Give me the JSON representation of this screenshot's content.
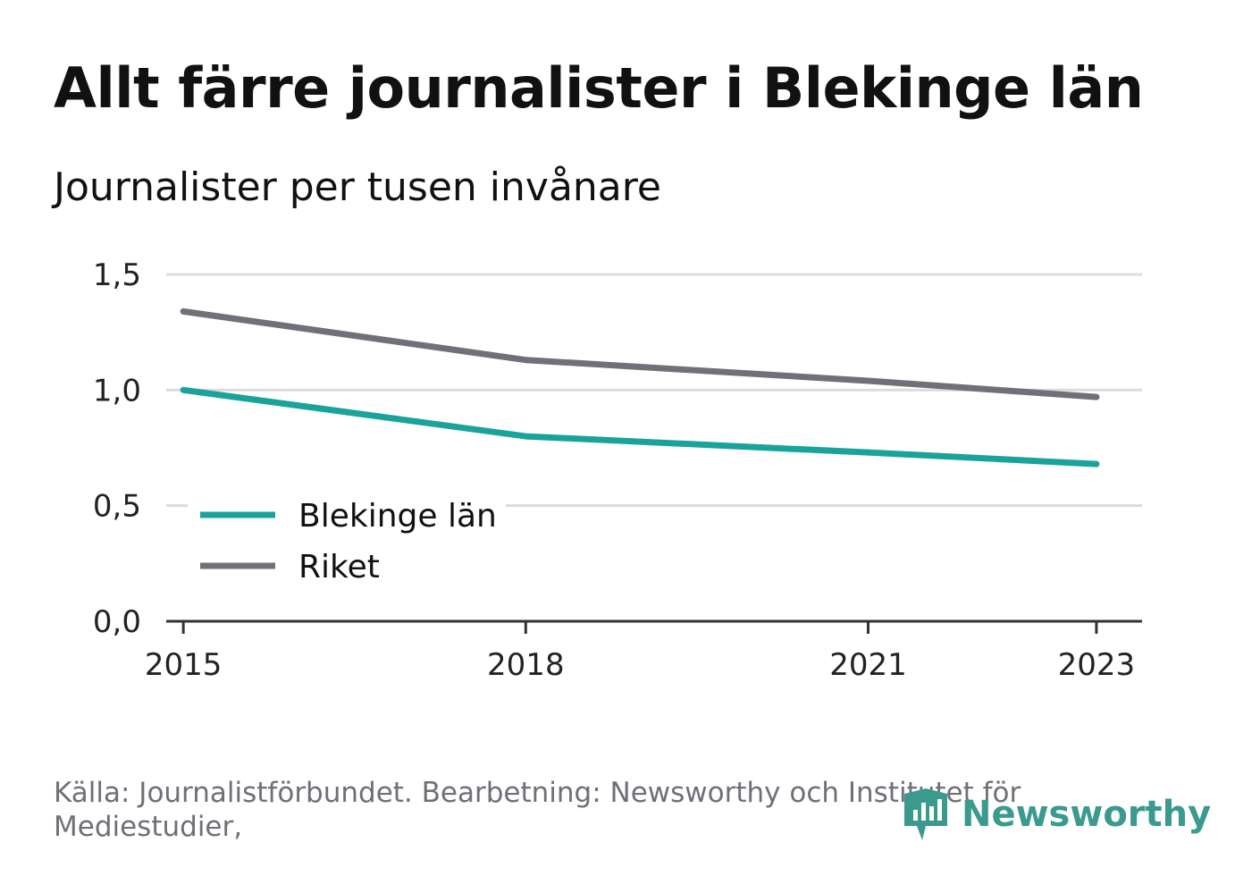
{
  "title": "Allt färre journalister i Blekinge län",
  "subtitle": "Journalister per tusen invånare",
  "source": "Källa: Journalistförbundet. Bearbetning: Newsworthy och Institutet för Mediestudier,",
  "logo": {
    "text": "Newsworthy",
    "icon": "newsworthy-logo-icon",
    "color": "#3a9a8e"
  },
  "chart_data": {
    "type": "line",
    "x": [
      2015,
      2018,
      2021,
      2023
    ],
    "x_ticks": [
      "2015",
      "2018",
      "2021",
      "2023"
    ],
    "y_ticks": [
      "0,0",
      "0,5",
      "1,0",
      "1,5"
    ],
    "ylim": [
      0,
      1.5
    ],
    "xlim": [
      2014.85,
      2023.4
    ],
    "grid": true,
    "legend_position": "bottom-left",
    "series": [
      {
        "name": "Blekinge län",
        "color": "#1aa39a",
        "values": [
          1.0,
          0.8,
          0.73,
          0.68
        ]
      },
      {
        "name": "Riket",
        "color": "#707078",
        "values": [
          1.34,
          1.13,
          1.04,
          0.97
        ]
      }
    ]
  }
}
